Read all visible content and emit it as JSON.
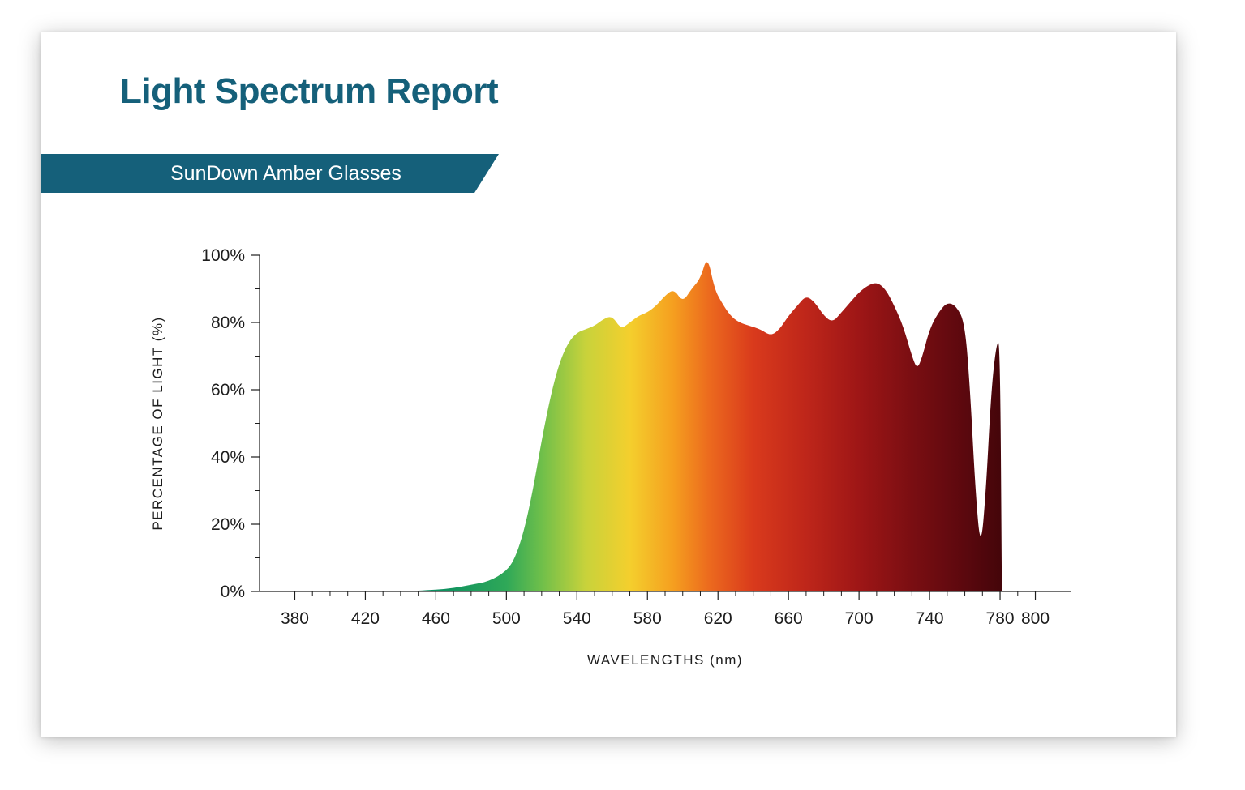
{
  "title": "Light Spectrum Report",
  "subtitle": "SunDown Amber Glasses",
  "title_color": "#15607a",
  "title_fontsize": 44,
  "ribbon_bg": "#15607a",
  "ribbon_text_color": "#ffffff",
  "ribbon_fontsize": 25,
  "card_bg": "#ffffff",
  "card_shadow": "rgba(0,0,0,0.25)",
  "chart": {
    "type": "area",
    "xlabel": "WAVELENGTHS (nm)",
    "ylabel": "PERCENTAGE OF LIGHT (%)",
    "label_fontsize": 17,
    "tick_fontsize": 21,
    "axis_color": "#1d1d1d",
    "plot_bg": "#ffffff",
    "xlim": [
      360,
      820
    ],
    "ylim": [
      0,
      100
    ],
    "xticks": [
      380,
      420,
      460,
      500,
      540,
      580,
      620,
      660,
      700,
      740,
      780,
      800
    ],
    "yticks": [
      0,
      20,
      40,
      60,
      80,
      100
    ],
    "ytick_suffix": "%",
    "minor_tick_spacing_x": 10,
    "minor_tick_spacing_y": 10,
    "gradient_stops": [
      {
        "wavelength": 460,
        "color": "#0a8f60"
      },
      {
        "wavelength": 500,
        "color": "#2fa858"
      },
      {
        "wavelength": 520,
        "color": "#6fbf4a"
      },
      {
        "wavelength": 545,
        "color": "#c8d23b"
      },
      {
        "wavelength": 570,
        "color": "#f4cf2d"
      },
      {
        "wavelength": 595,
        "color": "#f59e1f"
      },
      {
        "wavelength": 615,
        "color": "#ec6a1e"
      },
      {
        "wavelength": 640,
        "color": "#d93a1c"
      },
      {
        "wavelength": 670,
        "color": "#be261a"
      },
      {
        "wavelength": 700,
        "color": "#9e1616"
      },
      {
        "wavelength": 730,
        "color": "#7a0e12"
      },
      {
        "wavelength": 760,
        "color": "#5b080e"
      },
      {
        "wavelength": 780,
        "color": "#45050a"
      }
    ],
    "data": [
      {
        "x": 380,
        "y": 0
      },
      {
        "x": 440,
        "y": 0
      },
      {
        "x": 460,
        "y": 0.5
      },
      {
        "x": 470,
        "y": 1
      },
      {
        "x": 480,
        "y": 2
      },
      {
        "x": 490,
        "y": 3
      },
      {
        "x": 500,
        "y": 6
      },
      {
        "x": 505,
        "y": 10
      },
      {
        "x": 510,
        "y": 18
      },
      {
        "x": 515,
        "y": 30
      },
      {
        "x": 520,
        "y": 45
      },
      {
        "x": 525,
        "y": 58
      },
      {
        "x": 530,
        "y": 68
      },
      {
        "x": 535,
        "y": 74
      },
      {
        "x": 540,
        "y": 77
      },
      {
        "x": 545,
        "y": 78
      },
      {
        "x": 550,
        "y": 79
      },
      {
        "x": 555,
        "y": 81
      },
      {
        "x": 560,
        "y": 82
      },
      {
        "x": 565,
        "y": 78
      },
      {
        "x": 570,
        "y": 80
      },
      {
        "x": 575,
        "y": 82
      },
      {
        "x": 580,
        "y": 83
      },
      {
        "x": 585,
        "y": 85
      },
      {
        "x": 590,
        "y": 88
      },
      {
        "x": 595,
        "y": 90
      },
      {
        "x": 600,
        "y": 86
      },
      {
        "x": 605,
        "y": 90
      },
      {
        "x": 610,
        "y": 93
      },
      {
        "x": 614,
        "y": 100
      },
      {
        "x": 618,
        "y": 90
      },
      {
        "x": 622,
        "y": 86
      },
      {
        "x": 627,
        "y": 82
      },
      {
        "x": 632,
        "y": 80
      },
      {
        "x": 638,
        "y": 79
      },
      {
        "x": 644,
        "y": 78
      },
      {
        "x": 650,
        "y": 76
      },
      {
        "x": 655,
        "y": 78
      },
      {
        "x": 660,
        "y": 82
      },
      {
        "x": 665,
        "y": 85
      },
      {
        "x": 670,
        "y": 88
      },
      {
        "x": 675,
        "y": 86
      },
      {
        "x": 680,
        "y": 82
      },
      {
        "x": 685,
        "y": 80
      },
      {
        "x": 690,
        "y": 83
      },
      {
        "x": 695,
        "y": 86
      },
      {
        "x": 700,
        "y": 89
      },
      {
        "x": 705,
        "y": 91
      },
      {
        "x": 710,
        "y": 92
      },
      {
        "x": 715,
        "y": 90
      },
      {
        "x": 720,
        "y": 85
      },
      {
        "x": 725,
        "y": 79
      },
      {
        "x": 730,
        "y": 70
      },
      {
        "x": 733,
        "y": 66
      },
      {
        "x": 736,
        "y": 70
      },
      {
        "x": 740,
        "y": 78
      },
      {
        "x": 745,
        "y": 83
      },
      {
        "x": 750,
        "y": 86
      },
      {
        "x": 755,
        "y": 85
      },
      {
        "x": 760,
        "y": 80
      },
      {
        "x": 763,
        "y": 60
      },
      {
        "x": 766,
        "y": 30
      },
      {
        "x": 769,
        "y": 12
      },
      {
        "x": 772,
        "y": 30
      },
      {
        "x": 775,
        "y": 60
      },
      {
        "x": 778,
        "y": 74
      },
      {
        "x": 780,
        "y": 74
      },
      {
        "x": 781,
        "y": 0
      }
    ]
  }
}
